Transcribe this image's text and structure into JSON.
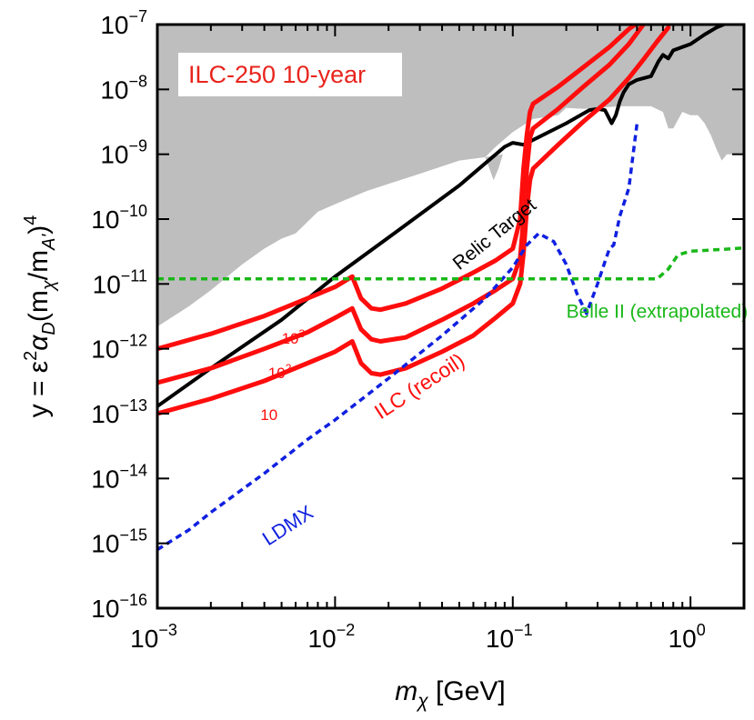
{
  "chart_data": {
    "type": "line",
    "xscale": "log",
    "yscale": "log",
    "xlim": [
      0.001,
      2.0
    ],
    "ylim": [
      1e-16,
      1e-07
    ],
    "xticks": [
      {
        "base": "10",
        "exp": "−3",
        "value": 0.001
      },
      {
        "base": "10",
        "exp": "−2",
        "value": 0.01
      },
      {
        "base": "10",
        "exp": "−1",
        "value": 0.1
      },
      {
        "base": "10",
        "exp": "0",
        "value": 1
      }
    ],
    "yticks": [
      {
        "base": "10",
        "exp": "−16",
        "value": 1e-16
      },
      {
        "base": "10",
        "exp": "−15",
        "value": 1e-15
      },
      {
        "base": "10",
        "exp": "−14",
        "value": 1e-14
      },
      {
        "base": "10",
        "exp": "−13",
        "value": 1e-13
      },
      {
        "base": "10",
        "exp": "−12",
        "value": 1e-12
      },
      {
        "base": "10",
        "exp": "−11",
        "value": 1e-11
      },
      {
        "base": "10",
        "exp": "−10",
        "value": 1e-10
      },
      {
        "base": "10",
        "exp": "−9",
        "value": 1e-09
      },
      {
        "base": "10",
        "exp": "−8",
        "value": 1e-08
      },
      {
        "base": "10",
        "exp": "−7",
        "value": 1e-07
      }
    ],
    "xlabel": {
      "main": "m",
      "sub": "χ",
      "unit": " [GeV]"
    },
    "ylabel": {
      "prefix": "y = ε",
      "sup2": "2",
      "alpha": "α",
      "alpha_sub": "D",
      "paren_open": "(m",
      "chi_sub": "χ",
      "slash": "/m",
      "a_sub": "A'",
      "paren_close": ")",
      "sup4": "4"
    },
    "title_box": {
      "text": "ILC-250 10-year",
      "color": "#e8241c"
    },
    "excluded_region": {
      "name": "Excluded (gray)",
      "color": "#bebebe",
      "points": [
        [
          0.001,
          2.2e-12
        ],
        [
          0.0015,
          4.5e-12
        ],
        [
          0.002,
          8e-12
        ],
        [
          0.003,
          2e-11
        ],
        [
          0.004,
          3.5e-11
        ],
        [
          0.005,
          5e-11
        ],
        [
          0.006,
          6e-11
        ],
        [
          0.008,
          1.3e-10
        ],
        [
          0.01,
          1.7e-10
        ],
        [
          0.015,
          2.7e-10
        ],
        [
          0.02,
          3.5e-10
        ],
        [
          0.03,
          5e-10
        ],
        [
          0.05,
          8e-10
        ],
        [
          0.07,
          9e-10
        ],
        [
          0.08,
          1.3e-09
        ],
        [
          0.1,
          2.2e-09
        ],
        [
          0.13,
          3.5e-09
        ],
        [
          0.18,
          4e-09
        ],
        [
          0.2,
          5.2e-09
        ],
        [
          0.25,
          5e-09
        ],
        [
          0.3,
          5.2e-09
        ],
        [
          0.4,
          5.5e-09
        ],
        [
          0.5,
          5.5e-09
        ],
        [
          0.6,
          5.5e-09
        ],
        [
          0.7,
          4.5e-09
        ],
        [
          0.75,
          2.5e-09
        ],
        [
          0.8,
          2.5e-09
        ],
        [
          0.9,
          4.5e-09
        ],
        [
          1.0,
          4e-09
        ],
        [
          1.1,
          4e-09
        ],
        [
          1.2,
          3e-09
        ],
        [
          1.3,
          2e-09
        ],
        [
          1.4,
          1.2e-09
        ],
        [
          1.5,
          8e-10
        ],
        [
          1.6,
          1e-09
        ],
        [
          1.8,
          1e-09
        ],
        [
          2.0,
          1e-09
        ]
      ],
      "detail_points": [
        [
          0.07,
          9e-10
        ],
        [
          0.078,
          4e-10
        ],
        [
          0.083,
          6e-10
        ],
        [
          0.088,
          1e-09
        ]
      ]
    },
    "series": [
      {
        "name": "Relic Target",
        "color": "#000000",
        "style": "solid",
        "width": 4,
        "points": [
          [
            0.001,
            1.3e-13
          ],
          [
            0.002,
            5e-13
          ],
          [
            0.005,
            2.8e-12
          ],
          [
            0.01,
            1.3e-11
          ],
          [
            0.02,
            5.2e-11
          ],
          [
            0.05,
            3.3e-10
          ],
          [
            0.09,
            1.3e-09
          ],
          [
            0.1,
            1.5e-09
          ],
          [
            0.115,
            1.4e-09
          ],
          [
            0.2,
            3e-09
          ],
          [
            0.27,
            4.8e-09
          ],
          [
            0.3,
            5e-09
          ],
          [
            0.33,
            4.8e-09
          ],
          [
            0.36,
            3e-09
          ],
          [
            0.38,
            4e-09
          ],
          [
            0.4,
            6.5e-09
          ],
          [
            0.42,
            9e-09
          ],
          [
            0.45,
            1.2e-08
          ],
          [
            0.5,
            1.4e-08
          ],
          [
            0.55,
            1.5e-08
          ],
          [
            0.6,
            1.6e-08
          ],
          [
            0.66,
            2.7e-08
          ],
          [
            0.7,
            3.4e-08
          ],
          [
            0.75,
            3e-08
          ],
          [
            0.8,
            4e-08
          ],
          [
            0.9,
            4.5e-08
          ],
          [
            1.0,
            5e-08
          ],
          [
            1.2,
            7e-08
          ],
          [
            1.4,
            9e-08
          ],
          [
            1.6,
            1.05e-07
          ]
        ]
      },
      {
        "name": "ILC (recoil) 10^3",
        "color": "#ff0d0d",
        "style": "solid",
        "width": 5,
        "points": [
          [
            0.001,
            1e-12
          ],
          [
            0.002,
            1.7e-12
          ],
          [
            0.004,
            3.2e-12
          ],
          [
            0.007,
            6e-12
          ],
          [
            0.01,
            9e-12
          ],
          [
            0.0125,
            1.3e-11
          ],
          [
            0.014,
            6e-12
          ],
          [
            0.016,
            4.2e-12
          ],
          [
            0.018,
            4e-12
          ],
          [
            0.025,
            5e-12
          ],
          [
            0.04,
            8.5e-12
          ],
          [
            0.06,
            1.5e-11
          ],
          [
            0.08,
            2.3e-11
          ],
          [
            0.1,
            3.5e-11
          ],
          [
            0.11,
            1e-10
          ],
          [
            0.115,
            6e-10
          ],
          [
            0.12,
            2e-09
          ],
          [
            0.125,
            4.5e-09
          ],
          [
            0.13,
            6e-09
          ],
          [
            0.18,
            1.1e-08
          ],
          [
            0.25,
            2.2e-08
          ],
          [
            0.35,
            4.5e-08
          ],
          [
            0.45,
            8.5e-08
          ],
          [
            0.5,
            1.05e-07
          ]
        ]
      },
      {
        "name": "ILC (recoil) 10^2",
        "color": "#ff0d0d",
        "style": "solid",
        "width": 5,
        "points": [
          [
            0.001,
            3e-13
          ],
          [
            0.002,
            5e-13
          ],
          [
            0.004,
            1e-12
          ],
          [
            0.007,
            1.8e-12
          ],
          [
            0.01,
            3e-12
          ],
          [
            0.0125,
            4.2e-12
          ],
          [
            0.014,
            2e-12
          ],
          [
            0.016,
            1.4e-12
          ],
          [
            0.018,
            1.3e-12
          ],
          [
            0.025,
            1.5e-12
          ],
          [
            0.04,
            2.8e-12
          ],
          [
            0.06,
            5e-12
          ],
          [
            0.08,
            8e-12
          ],
          [
            0.1,
            1.2e-11
          ],
          [
            0.11,
            2.5e-11
          ],
          [
            0.115,
            1e-10
          ],
          [
            0.12,
            6e-10
          ],
          [
            0.125,
            1.8e-09
          ],
          [
            0.13,
            2.5e-09
          ],
          [
            0.18,
            5e-09
          ],
          [
            0.25,
            1.1e-08
          ],
          [
            0.35,
            2.4e-08
          ],
          [
            0.45,
            5e-08
          ],
          [
            0.55,
            1.05e-07
          ]
        ]
      },
      {
        "name": "ILC (recoil) 10",
        "color": "#ff0d0d",
        "style": "solid",
        "width": 5,
        "points": [
          [
            0.001,
            1e-13
          ],
          [
            0.002,
            1.7e-13
          ],
          [
            0.004,
            3.2e-13
          ],
          [
            0.007,
            6e-13
          ],
          [
            0.01,
            9e-13
          ],
          [
            0.0125,
            1.3e-12
          ],
          [
            0.014,
            6e-13
          ],
          [
            0.016,
            4.2e-13
          ],
          [
            0.018,
            4e-13
          ],
          [
            0.025,
            5e-13
          ],
          [
            0.04,
            9e-13
          ],
          [
            0.06,
            1.6e-12
          ],
          [
            0.08,
            3e-12
          ],
          [
            0.1,
            5e-12
          ],
          [
            0.11,
            1e-11
          ],
          [
            0.115,
            3e-11
          ],
          [
            0.12,
            1.5e-10
          ],
          [
            0.125,
            4e-10
          ],
          [
            0.13,
            6e-10
          ],
          [
            0.18,
            1.4e-09
          ],
          [
            0.25,
            3.2e-09
          ],
          [
            0.35,
            7e-09
          ],
          [
            0.45,
            1.5e-08
          ],
          [
            0.55,
            3e-08
          ],
          [
            0.65,
            5.5e-08
          ],
          [
            0.75,
            9e-08
          ]
        ]
      },
      {
        "name": "LDMX",
        "color": "#1020e0",
        "style": "dotted",
        "width": 3.5,
        "points": [
          [
            0.001,
            8e-16
          ],
          [
            0.0015,
            1.6e-15
          ],
          [
            0.002,
            3e-15
          ],
          [
            0.004,
            1.2e-14
          ],
          [
            0.007,
            4e-14
          ],
          [
            0.01,
            8e-14
          ],
          [
            0.02,
            3.5e-13
          ],
          [
            0.04,
            1.6e-12
          ],
          [
            0.07,
            6e-12
          ],
          [
            0.1,
            1.8e-11
          ],
          [
            0.12,
            4e-11
          ],
          [
            0.14,
            6e-11
          ],
          [
            0.17,
            4.5e-11
          ],
          [
            0.2,
            2e-11
          ],
          [
            0.23,
            7e-12
          ],
          [
            0.26,
            3.5e-12
          ],
          [
            0.3,
            1e-11
          ],
          [
            0.33,
            2.2e-11
          ],
          [
            0.35,
            3.5e-11
          ],
          [
            0.37,
            4e-11
          ],
          [
            0.4,
            1.1e-10
          ],
          [
            0.45,
            3e-10
          ],
          [
            0.5,
            3e-09
          ]
        ]
      },
      {
        "name": "Belle II (extrapolated)",
        "color": "#18b818",
        "style": "dotted",
        "width": 3.5,
        "points": [
          [
            0.001,
            1.2e-11
          ],
          [
            0.005,
            1.2e-11
          ],
          [
            0.01,
            1.2e-11
          ],
          [
            0.05,
            1.2e-11
          ],
          [
            0.1,
            1.2e-11
          ],
          [
            0.3,
            1.2e-11
          ],
          [
            0.5,
            1.2e-11
          ],
          [
            0.65,
            1.2e-11
          ],
          [
            0.75,
            1.7e-11
          ],
          [
            0.85,
            2.8e-11
          ],
          [
            1.0,
            3.2e-11
          ],
          [
            1.5,
            3.4e-11
          ],
          [
            2.0,
            3.6e-11
          ]
        ]
      }
    ],
    "annotations": [
      {
        "text": "Relic Target",
        "color": "#000000",
        "x": 0.05,
        "y": 1.6e-11,
        "rotate": -39,
        "size": 21
      },
      {
        "text": "ILC (recoil)",
        "color": "#ff0d0d",
        "x": 0.018,
        "y": 8e-14,
        "rotate": -33,
        "size": 23
      },
      {
        "text": "LDMX",
        "color": "#1020e0",
        "x": 0.0042,
        "y": 9e-16,
        "rotate": -33,
        "size": 22
      },
      {
        "text": "Belle II (extrapolated)",
        "color": "#18b818",
        "x": 0.2,
        "y": 3e-12,
        "rotate": 0,
        "size": 21
      },
      {
        "text": "10",
        "sup": "3",
        "color": "#ff0d0d",
        "x": 0.005,
        "y": 1.2e-12,
        "rotate": 0,
        "size": 17
      },
      {
        "text": "10",
        "sup": "2",
        "color": "#ff0d0d",
        "x": 0.0042,
        "y": 3.5e-13,
        "rotate": 0,
        "size": 17
      },
      {
        "text": "10",
        "color": "#ff0d0d",
        "x": 0.0038,
        "y": 8e-14,
        "rotate": 0,
        "size": 17
      }
    ]
  }
}
